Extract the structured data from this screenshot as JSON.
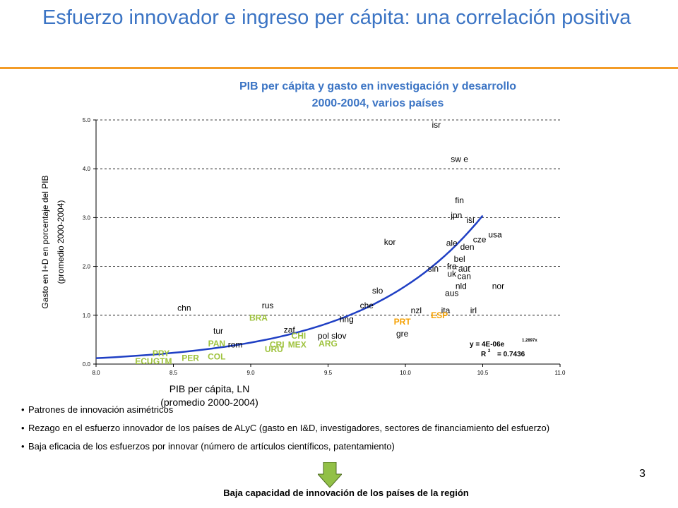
{
  "slide": {
    "title": "Esfuerzo innovador e ingreso per cápita: una correlación positiva",
    "page_number": "3",
    "accent_color": "#3b74c4",
    "rule_color": "#f39c27"
  },
  "chart_data": {
    "type": "scatter",
    "title_lines": [
      "PIB per cápita y gasto en investigación y desarrollo",
      "2000-2004, varios países"
    ],
    "xlabel_lines": [
      "PIB per cápita, LN",
      "(promedio 2000-2004)"
    ],
    "ylabel_lines": [
      "Gasto en I+D en porcentaje del PIB",
      "(promedio 2000-2004)"
    ],
    "xlim": [
      8.0,
      11.0
    ],
    "ylim": [
      0.0,
      5.0
    ],
    "xticks": [
      "8.0",
      "8.5",
      "9.0",
      "9.5",
      "10.0",
      "10.5",
      "11.0"
    ],
    "yticks": [
      "0.0",
      "1.0",
      "2.0",
      "3.0",
      "4.0",
      "5.0"
    ],
    "grid": "horizontal dashed",
    "colors": {
      "default_label": "#000000",
      "latin_america_label": "#9ec23c",
      "europe_highlight_label": "#f5a000",
      "trend_line": "#1f3fc4"
    },
    "points": [
      {
        "label": "isr",
        "x": 10.2,
        "y": 4.9,
        "group": "default"
      },
      {
        "label": "sw e",
        "x": 10.35,
        "y": 4.2,
        "group": "default"
      },
      {
        "label": "fin",
        "x": 10.35,
        "y": 3.35,
        "group": "default"
      },
      {
        "label": "jpn",
        "x": 10.33,
        "y": 3.05,
        "group": "default"
      },
      {
        "label": "isl",
        "x": 10.42,
        "y": 2.95,
        "group": "default"
      },
      {
        "label": "cze",
        "x": 10.48,
        "y": 2.55,
        "group": "default"
      },
      {
        "label": "usa",
        "x": 10.58,
        "y": 2.65,
        "group": "default"
      },
      {
        "label": "kor",
        "x": 9.9,
        "y": 2.5,
        "group": "default"
      },
      {
        "label": "ale",
        "x": 10.3,
        "y": 2.48,
        "group": "default"
      },
      {
        "label": "den",
        "x": 10.4,
        "y": 2.4,
        "group": "default"
      },
      {
        "label": "bel",
        "x": 10.35,
        "y": 2.15,
        "group": "default"
      },
      {
        "label": "fra",
        "x": 10.3,
        "y": 2.0,
        "group": "default"
      },
      {
        "label": "aut",
        "x": 10.38,
        "y": 1.95,
        "group": "default"
      },
      {
        "label": "sin",
        "x": 10.18,
        "y": 1.95,
        "group": "default"
      },
      {
        "label": "uk",
        "x": 10.3,
        "y": 1.85,
        "group": "default"
      },
      {
        "label": "can",
        "x": 10.38,
        "y": 1.8,
        "group": "default"
      },
      {
        "label": "nld",
        "x": 10.36,
        "y": 1.6,
        "group": "default"
      },
      {
        "label": "nor",
        "x": 10.6,
        "y": 1.6,
        "group": "default"
      },
      {
        "label": "aus",
        "x": 10.3,
        "y": 1.45,
        "group": "default"
      },
      {
        "label": "slo",
        "x": 9.82,
        "y": 1.5,
        "group": "default"
      },
      {
        "label": "che",
        "x": 9.75,
        "y": 1.2,
        "group": "default"
      },
      {
        "label": "nzl",
        "x": 10.07,
        "y": 1.1,
        "group": "default"
      },
      {
        "label": "ita",
        "x": 10.26,
        "y": 1.1,
        "group": "default"
      },
      {
        "label": "irl",
        "x": 10.44,
        "y": 1.1,
        "group": "default"
      },
      {
        "label": "hng",
        "x": 9.62,
        "y": 0.92,
        "group": "default"
      },
      {
        "label": "gre",
        "x": 9.98,
        "y": 0.62,
        "group": "default"
      },
      {
        "label": "chn",
        "x": 8.57,
        "y": 1.15,
        "group": "default"
      },
      {
        "label": "rus",
        "x": 9.11,
        "y": 1.2,
        "group": "default"
      },
      {
        "label": "tur",
        "x": 8.79,
        "y": 0.68,
        "group": "default"
      },
      {
        "label": "rom",
        "x": 8.9,
        "y": 0.4,
        "group": "default"
      },
      {
        "label": "zaf",
        "x": 9.25,
        "y": 0.7,
        "group": "default"
      },
      {
        "label": "pol",
        "x": 9.47,
        "y": 0.58,
        "group": "default"
      },
      {
        "label": "slov",
        "x": 9.57,
        "y": 0.58,
        "group": "default"
      },
      {
        "label": "BRA",
        "x": 9.05,
        "y": 0.95,
        "group": "latam"
      },
      {
        "label": "CHI",
        "x": 9.31,
        "y": 0.58,
        "group": "latam"
      },
      {
        "label": "CRI",
        "x": 9.17,
        "y": 0.4,
        "group": "latam"
      },
      {
        "label": "MEX",
        "x": 9.3,
        "y": 0.4,
        "group": "latam"
      },
      {
        "label": "ARG",
        "x": 9.5,
        "y": 0.42,
        "group": "latam"
      },
      {
        "label": "URU",
        "x": 9.15,
        "y": 0.3,
        "group": "latam"
      },
      {
        "label": "PAN",
        "x": 8.78,
        "y": 0.42,
        "group": "latam"
      },
      {
        "label": "COL",
        "x": 8.78,
        "y": 0.15,
        "group": "latam"
      },
      {
        "label": "PER",
        "x": 8.61,
        "y": 0.12,
        "group": "latam"
      },
      {
        "label": "PRY",
        "x": 8.42,
        "y": 0.22,
        "group": "latam"
      },
      {
        "label": "ECU",
        "x": 8.31,
        "y": 0.06,
        "group": "latam"
      },
      {
        "label": "GTM",
        "x": 8.43,
        "y": 0.06,
        "group": "latam"
      },
      {
        "label": "PRT",
        "x": 9.98,
        "y": 0.87,
        "group": "europe"
      },
      {
        "label": "ESP",
        "x": 10.22,
        "y": 1.0,
        "group": "europe"
      }
    ],
    "trendline": {
      "type": "exponential",
      "equation_text": "y = 4E-06e",
      "exponent_text": "1.2897x",
      "r2_prefix": "R",
      "r2_power": "2",
      "r2_value": "= 0.7436",
      "x_range": [
        8.0,
        10.5
      ]
    }
  },
  "notes": {
    "bullets": [
      "Patrones de innovación asimétricos",
      "Rezago en el esfuerzo innovador de los países de ALyC (gasto en I&D, investigadores, sectores de financiamiento del esfuerzo)",
      "Baja eficacia de los esfuerzos por innovar (número de artículos científicos, patentamiento)"
    ],
    "conclusion": "Baja capacidad de innovación de los países de la región"
  }
}
